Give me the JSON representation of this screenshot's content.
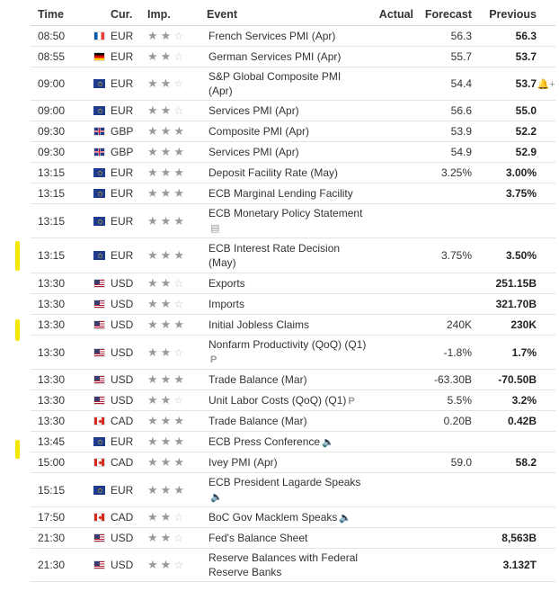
{
  "header": {
    "time": "Time",
    "currency": "Cur.",
    "importance": "Imp.",
    "event": "Event",
    "actual": "Actual",
    "forecast": "Forecast",
    "previous": "Previous"
  },
  "rows": [
    {
      "time": "08:50",
      "flag": "fr",
      "currency": "EUR",
      "importance": 2,
      "event": "French Services PMI (Apr)",
      "actual": "",
      "forecast": "56.3",
      "previous": "56.3"
    },
    {
      "time": "08:55",
      "flag": "de",
      "currency": "EUR",
      "importance": 2,
      "event": "German Services PMI (Apr)",
      "actual": "",
      "forecast": "55.7",
      "previous": "53.7"
    },
    {
      "time": "09:00",
      "flag": "eu",
      "currency": "EUR",
      "importance": 2,
      "event": "S&P Global Composite PMI (Apr)",
      "actual": "",
      "forecast": "54.4",
      "previous": "53.7",
      "bell": true
    },
    {
      "time": "09:00",
      "flag": "eu",
      "currency": "EUR",
      "importance": 2,
      "event": "Services PMI (Apr)",
      "actual": "",
      "forecast": "56.6",
      "previous": "55.0"
    },
    {
      "time": "09:30",
      "flag": "gb",
      "currency": "GBP",
      "importance": 3,
      "event": "Composite PMI (Apr)",
      "actual": "",
      "forecast": "53.9",
      "previous": "52.2"
    },
    {
      "time": "09:30",
      "flag": "gb",
      "currency": "GBP",
      "importance": 3,
      "event": "Services PMI (Apr)",
      "actual": "",
      "forecast": "54.9",
      "previous": "52.9"
    },
    {
      "time": "13:15",
      "flag": "eu",
      "currency": "EUR",
      "importance": 3,
      "event": "Deposit Facility Rate (May)",
      "actual": "",
      "forecast": "3.25%",
      "previous": "3.00%"
    },
    {
      "time": "13:15",
      "flag": "eu",
      "currency": "EUR",
      "importance": 3,
      "event": "ECB Marginal Lending Facility",
      "actual": "",
      "forecast": "",
      "previous": "3.75%"
    },
    {
      "time": "13:15",
      "flag": "eu",
      "currency": "EUR",
      "importance": 3,
      "event": "ECB Monetary Policy Statement",
      "actual": "",
      "forecast": "",
      "previous": "",
      "icon": "document"
    },
    {
      "time": "13:15",
      "flag": "eu",
      "currency": "EUR",
      "importance": 3,
      "event": "ECB Interest Rate Decision (May)",
      "actual": "",
      "forecast": "3.75%",
      "previous": "3.50%",
      "highlight": true
    },
    {
      "time": "13:30",
      "flag": "us",
      "currency": "USD",
      "importance": 2,
      "event": "Exports",
      "actual": "",
      "forecast": "",
      "previous": "251.15B"
    },
    {
      "time": "13:30",
      "flag": "us",
      "currency": "USD",
      "importance": 2,
      "event": "Imports",
      "actual": "",
      "forecast": "",
      "previous": "321.70B"
    },
    {
      "time": "13:30",
      "flag": "us",
      "currency": "USD",
      "importance": 3,
      "event": "Initial Jobless Claims",
      "actual": "",
      "forecast": "240K",
      "previous": "230K",
      "highlight": true
    },
    {
      "time": "13:30",
      "flag": "us",
      "currency": "USD",
      "importance": 2,
      "event": "Nonfarm Productivity (QoQ) (Q1)",
      "actual": "",
      "forecast": "-1.8%",
      "previous": "1.7%",
      "icon": "preliminary"
    },
    {
      "time": "13:30",
      "flag": "us",
      "currency": "USD",
      "importance": 3,
      "event": "Trade Balance (Mar)",
      "actual": "",
      "forecast": "-63.30B",
      "previous": "-70.50B"
    },
    {
      "time": "13:30",
      "flag": "us",
      "currency": "USD",
      "importance": 2,
      "event": "Unit Labor Costs (QoQ) (Q1)",
      "actual": "",
      "forecast": "5.5%",
      "previous": "3.2%",
      "inline_icon": "preliminary"
    },
    {
      "time": "13:30",
      "flag": "ca",
      "currency": "CAD",
      "importance": 3,
      "event": "Trade Balance (Mar)",
      "actual": "",
      "forecast": "0.20B",
      "previous": "0.42B"
    },
    {
      "time": "13:45",
      "flag": "eu",
      "currency": "EUR",
      "importance": 3,
      "event": "ECB Press Conference",
      "actual": "",
      "forecast": "",
      "previous": "",
      "inline_icon": "speaker",
      "highlight": true
    },
    {
      "time": "15:00",
      "flag": "ca",
      "currency": "CAD",
      "importance": 3,
      "event": "Ivey PMI (Apr)",
      "actual": "",
      "forecast": "59.0",
      "previous": "58.2"
    },
    {
      "time": "15:15",
      "flag": "eu",
      "currency": "EUR",
      "importance": 3,
      "event": "ECB President Lagarde Speaks",
      "actual": "",
      "forecast": "",
      "previous": "",
      "icon": "speaker"
    },
    {
      "time": "17:50",
      "flag": "ca",
      "currency": "CAD",
      "importance": 2,
      "event": "BoC Gov Macklem Speaks",
      "actual": "",
      "forecast": "",
      "previous": "",
      "inline_icon": "speaker"
    },
    {
      "time": "21:30",
      "flag": "us",
      "currency": "USD",
      "importance": 2,
      "event": "Fed's Balance Sheet",
      "actual": "",
      "forecast": "",
      "previous": "8,563B"
    },
    {
      "time": "21:30",
      "flag": "us",
      "currency": "USD",
      "importance": 2,
      "event": "Reserve Balances with Federal Reserve Banks",
      "actual": "",
      "forecast": "",
      "previous": "3.132T"
    }
  ]
}
